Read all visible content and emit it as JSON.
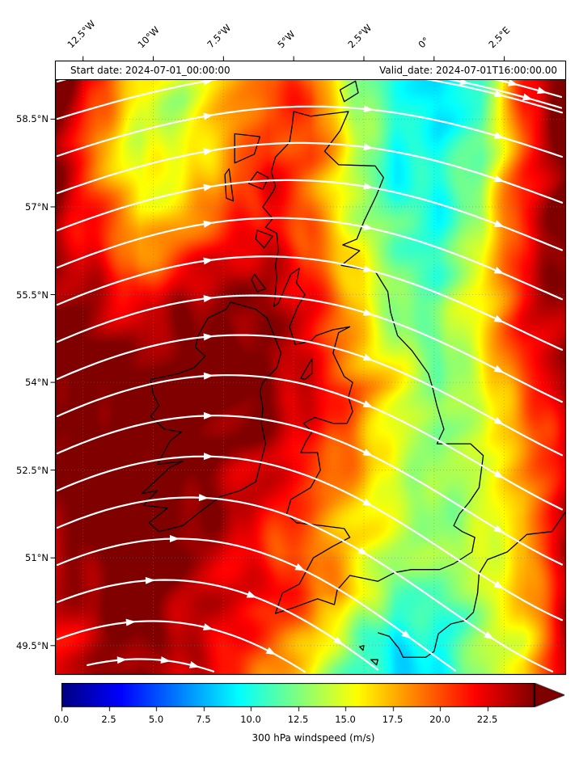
{
  "header": {
    "start_date": "Start date: 2024-07-01_00:00:00",
    "valid_date": "Valid_date: 2024-07-01T16:00:00.00"
  },
  "axes": {
    "x_tick_labels": [
      "12.5°W",
      "10°W",
      "7.5°W",
      "5°W",
      "2.5°W",
      "0°",
      "2.5°E"
    ],
    "x_tick_lons": [
      -12.5,
      -10,
      -7.5,
      -5,
      -2.5,
      0,
      2.5
    ],
    "y_tick_labels": [
      "58.5°N",
      "57°N",
      "55.5°N",
      "54°N",
      "52.5°N",
      "51°N",
      "49.5°N"
    ],
    "y_tick_lats": [
      58.5,
      57,
      55.5,
      54,
      52.5,
      51,
      49.5
    ]
  },
  "colorbar": {
    "label": "300 hPa windspeed (m/s)",
    "tick_labels": [
      "0.0",
      "2.5",
      "5.0",
      "7.5",
      "10.0",
      "12.5",
      "15.0",
      "17.5",
      "20.0",
      "22.5"
    ],
    "tick_values": [
      0,
      2.5,
      5,
      7.5,
      10,
      12.5,
      15,
      17.5,
      20,
      22.5
    ],
    "vmin": 0,
    "vmax": 25,
    "extend": "max",
    "colormap": "jet"
  },
  "chart_data": {
    "type": "heatmap",
    "colorbar_label": "300 hPa windspeed (m/s)",
    "units": "m/s",
    "lon_range": [
      -13.5,
      4.7
    ],
    "lat_range": [
      49.0,
      59.5
    ],
    "grid": {
      "lons": [
        -13.5,
        -11.98,
        -10.47,
        -8.95,
        -7.43,
        -5.92,
        -4.4,
        -2.88,
        -1.37,
        0.15,
        1.67,
        3.18,
        4.7
      ],
      "lats": [
        59.5,
        58.8,
        58.1,
        57.4,
        56.7,
        56.0,
        55.3,
        54.6,
        53.9,
        53.2,
        52.5,
        51.8,
        51.1,
        50.4,
        49.7,
        49.0
      ],
      "windspeed": [
        [
          26,
          22,
          17,
          15,
          18,
          20,
          18,
          12,
          9.5,
          9,
          10,
          20,
          25
        ],
        [
          26,
          20,
          15,
          14,
          17,
          20,
          21,
          14,
          10,
          9,
          11,
          21,
          26
        ],
        [
          25,
          18,
          14,
          15,
          18,
          21,
          20,
          15,
          10,
          9.5,
          12,
          20,
          26
        ],
        [
          25,
          20,
          15,
          16,
          19,
          22,
          19,
          14,
          10,
          10,
          13,
          21,
          26
        ],
        [
          24,
          21,
          17,
          18,
          20,
          22,
          20,
          15,
          11,
          10,
          14,
          22,
          26
        ],
        [
          24,
          22,
          19,
          21,
          23,
          24,
          21,
          16,
          12,
          11,
          15,
          22,
          25
        ],
        [
          25,
          24,
          22,
          24,
          25,
          25,
          22,
          17,
          13,
          12,
          16,
          22,
          25
        ],
        [
          26,
          25,
          24,
          25,
          26,
          24,
          22,
          18,
          14,
          12,
          16,
          21,
          24
        ],
        [
          26,
          25,
          25,
          26,
          26,
          25,
          23,
          20,
          16,
          12,
          15,
          20,
          24
        ],
        [
          25,
          26,
          26,
          26,
          25,
          24,
          22,
          19,
          15,
          12,
          14,
          19,
          23
        ],
        [
          25,
          26,
          26,
          25,
          24,
          23,
          21,
          18,
          15,
          13,
          14,
          18,
          23
        ],
        [
          24,
          26,
          26,
          25,
          24,
          22,
          20,
          17,
          14,
          13,
          14,
          17,
          23
        ],
        [
          24,
          25,
          26,
          25,
          23,
          21,
          19,
          16,
          14,
          13,
          15,
          17,
          24
        ],
        [
          23,
          25,
          26,
          24,
          23,
          22,
          20,
          17,
          12,
          11,
          14,
          17,
          23
        ],
        [
          22,
          24,
          25,
          24,
          22,
          20,
          18,
          13,
          9,
          10,
          13,
          16,
          23
        ],
        [
          22,
          24,
          25,
          23,
          21,
          19,
          16,
          11,
          8,
          10,
          13,
          16,
          23
        ]
      ]
    },
    "streamlines": {
      "color": "#ffffff",
      "width": 2.2,
      "pattern": "westerly flow, ridge over Ireland/Scotland then turning southeast toward the east"
    },
    "gridlines": {
      "color": "#777777",
      "style": "dotted"
    },
    "coastlines": {
      "color": "#000000",
      "gb": [
        [
          -5.0,
          58.63
        ],
        [
          -4.4,
          58.55
        ],
        [
          -3.55,
          58.6
        ],
        [
          -3.05,
          58.63
        ],
        [
          -3.35,
          58.3
        ],
        [
          -3.9,
          57.95
        ],
        [
          -3.4,
          57.72
        ],
        [
          -2.1,
          57.7
        ],
        [
          -1.8,
          57.5
        ],
        [
          -2.05,
          57.2
        ],
        [
          -2.5,
          56.75
        ],
        [
          -2.75,
          56.45
        ],
        [
          -3.25,
          56.35
        ],
        [
          -2.65,
          56.25
        ],
        [
          -3.3,
          56.0
        ],
        [
          -2.1,
          55.9
        ],
        [
          -1.65,
          55.55
        ],
        [
          -1.55,
          55.2
        ],
        [
          -1.3,
          54.8
        ],
        [
          -0.8,
          54.55
        ],
        [
          -0.2,
          54.15
        ],
        [
          -0.05,
          53.9
        ],
        [
          0.1,
          53.6
        ],
        [
          0.35,
          53.2
        ],
        [
          0.1,
          52.95
        ],
        [
          0.5,
          52.95
        ],
        [
          1.3,
          52.95
        ],
        [
          1.75,
          52.75
        ],
        [
          1.6,
          52.2
        ],
        [
          1.25,
          51.95
        ],
        [
          0.9,
          51.75
        ],
        [
          0.7,
          51.55
        ],
        [
          1.0,
          51.45
        ],
        [
          1.45,
          51.35
        ],
        [
          1.35,
          51.1
        ],
        [
          0.7,
          50.9
        ],
        [
          0.2,
          50.8
        ],
        [
          -0.8,
          50.8
        ],
        [
          -1.4,
          50.75
        ],
        [
          -2.0,
          50.6
        ],
        [
          -2.5,
          50.65
        ],
        [
          -3.0,
          50.7
        ],
        [
          -3.45,
          50.45
        ],
        [
          -3.55,
          50.2
        ],
        [
          -4.15,
          50.3
        ],
        [
          -5.0,
          50.15
        ],
        [
          -5.65,
          50.05
        ],
        [
          -5.4,
          50.4
        ],
        [
          -4.8,
          50.55
        ],
        [
          -4.3,
          51.0
        ],
        [
          -3.6,
          51.2
        ],
        [
          -3.0,
          51.35
        ],
        [
          -3.2,
          51.5
        ],
        [
          -4.0,
          51.55
        ],
        [
          -4.9,
          51.6
        ],
        [
          -5.25,
          51.75
        ],
        [
          -5.1,
          52.0
        ],
        [
          -4.4,
          52.2
        ],
        [
          -4.05,
          52.5
        ],
        [
          -4.15,
          52.8
        ],
        [
          -4.75,
          52.8
        ],
        [
          -4.55,
          53.0
        ],
        [
          -4.35,
          53.15
        ],
        [
          -4.65,
          53.3
        ],
        [
          -4.25,
          53.4
        ],
        [
          -3.6,
          53.3
        ],
        [
          -3.1,
          53.3
        ],
        [
          -2.9,
          53.5
        ],
        [
          -3.05,
          53.75
        ],
        [
          -2.9,
          54.0
        ],
        [
          -3.2,
          54.1
        ],
        [
          -3.6,
          54.5
        ],
        [
          -3.4,
          54.85
        ],
        [
          -3.0,
          54.95
        ],
        [
          -3.6,
          54.9
        ],
        [
          -4.2,
          54.8
        ],
        [
          -4.4,
          54.7
        ],
        [
          -4.95,
          54.65
        ],
        [
          -5.15,
          54.95
        ],
        [
          -4.85,
          55.3
        ],
        [
          -4.6,
          55.5
        ],
        [
          -4.9,
          55.7
        ],
        [
          -4.8,
          55.95
        ],
        [
          -5.1,
          55.85
        ],
        [
          -5.55,
          55.35
        ],
        [
          -5.7,
          55.3
        ],
        [
          -5.6,
          55.8
        ],
        [
          -5.65,
          56.0
        ],
        [
          -5.55,
          56.25
        ],
        [
          -5.6,
          56.55
        ],
        [
          -6.0,
          56.65
        ],
        [
          -5.75,
          56.8
        ],
        [
          -6.1,
          57.0
        ],
        [
          -5.75,
          57.25
        ],
        [
          -5.65,
          57.35
        ],
        [
          -5.8,
          57.6
        ],
        [
          -5.65,
          57.85
        ],
        [
          -5.15,
          58.1
        ],
        [
          -5.05,
          58.4
        ],
        [
          -5.0,
          58.63
        ]
      ],
      "ireland": [
        [
          -7.25,
          55.37
        ],
        [
          -6.35,
          55.25
        ],
        [
          -5.95,
          55.1
        ],
        [
          -5.45,
          54.5
        ],
        [
          -5.6,
          54.25
        ],
        [
          -6.1,
          54.0
        ],
        [
          -6.2,
          53.85
        ],
        [
          -6.1,
          53.55
        ],
        [
          -6.15,
          53.3
        ],
        [
          -6.0,
          52.95
        ],
        [
          -6.35,
          52.3
        ],
        [
          -6.9,
          52.15
        ],
        [
          -7.6,
          52.05
        ],
        [
          -8.3,
          51.8
        ],
        [
          -8.95,
          51.55
        ],
        [
          -9.8,
          51.45
        ],
        [
          -10.15,
          51.6
        ],
        [
          -9.5,
          51.85
        ],
        [
          -10.35,
          51.9
        ],
        [
          -9.85,
          52.15
        ],
        [
          -10.4,
          52.1
        ],
        [
          -9.4,
          52.55
        ],
        [
          -8.95,
          52.65
        ],
        [
          -9.85,
          52.6
        ],
        [
          -9.4,
          53.0
        ],
        [
          -9.0,
          53.15
        ],
        [
          -9.6,
          53.2
        ],
        [
          -10.1,
          53.42
        ],
        [
          -9.8,
          53.6
        ],
        [
          -10.0,
          53.8
        ],
        [
          -10.1,
          54.05
        ],
        [
          -9.1,
          54.15
        ],
        [
          -8.55,
          54.25
        ],
        [
          -8.15,
          54.45
        ],
        [
          -8.5,
          54.6
        ],
        [
          -8.4,
          54.8
        ],
        [
          -8.05,
          55.1
        ],
        [
          -7.4,
          55.25
        ],
        [
          -7.25,
          55.37
        ]
      ],
      "islands": [
        [
          [
            -4.75,
            54.07
          ],
          [
            -4.35,
            54.4
          ],
          [
            -4.35,
            54.15
          ],
          [
            -4.6,
            54.05
          ],
          [
            -4.75,
            54.07
          ]
        ],
        [
          [
            -7.1,
            58.25
          ],
          [
            -6.2,
            58.2
          ],
          [
            -6.4,
            57.9
          ],
          [
            -7.1,
            57.75
          ],
          [
            -7.1,
            58.25
          ]
        ],
        [
          [
            -7.3,
            57.65
          ],
          [
            -7.15,
            57.1
          ],
          [
            -7.4,
            57.15
          ],
          [
            -7.45,
            57.55
          ],
          [
            -7.3,
            57.65
          ]
        ],
        [
          [
            -6.3,
            57.6
          ],
          [
            -5.9,
            57.5
          ],
          [
            -6.1,
            57.3
          ],
          [
            -6.6,
            57.4
          ],
          [
            -6.3,
            57.6
          ]
        ],
        [
          [
            -6.3,
            56.6
          ],
          [
            -5.75,
            56.5
          ],
          [
            -6.05,
            56.3
          ],
          [
            -6.35,
            56.45
          ],
          [
            -6.3,
            56.6
          ]
        ],
        [
          [
            -6.4,
            55.85
          ],
          [
            -6.0,
            55.6
          ],
          [
            -6.3,
            55.55
          ],
          [
            -6.5,
            55.75
          ],
          [
            -6.4,
            55.85
          ]
        ],
        [
          [
            -3.35,
            59.0
          ],
          [
            -2.8,
            59.15
          ],
          [
            -2.7,
            58.95
          ],
          [
            -3.2,
            58.8
          ],
          [
            -3.35,
            59.0
          ]
        ],
        [
          [
            -2.65,
            49.48
          ],
          [
            -2.5,
            49.5
          ],
          [
            -2.53,
            49.42
          ],
          [
            -2.65,
            49.48
          ]
        ],
        [
          [
            -2.25,
            49.26
          ],
          [
            -2.0,
            49.26
          ],
          [
            -2.05,
            49.17
          ],
          [
            -2.25,
            49.26
          ]
        ]
      ],
      "france": [
        [
          -2.0,
          49.72
        ],
        [
          -1.6,
          49.66
        ],
        [
          -1.25,
          49.45
        ],
        [
          -1.1,
          49.3
        ],
        [
          -0.3,
          49.3
        ],
        [
          0.0,
          49.4
        ],
        [
          0.15,
          49.7
        ],
        [
          0.6,
          49.87
        ],
        [
          1.1,
          49.93
        ],
        [
          1.4,
          50.07
        ],
        [
          1.55,
          50.4
        ],
        [
          1.6,
          50.73
        ],
        [
          1.9,
          50.97
        ],
        [
          2.6,
          51.1
        ],
        [
          3.3,
          51.4
        ],
        [
          4.2,
          51.45
        ],
        [
          4.7,
          51.8
        ]
      ]
    }
  }
}
